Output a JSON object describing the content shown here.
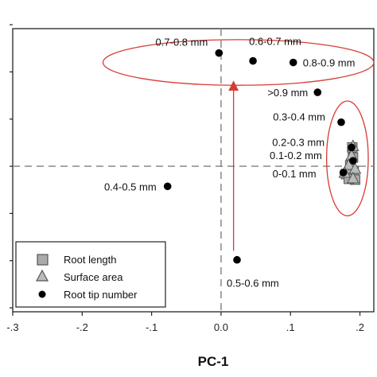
{
  "chart_data": {
    "type": "scatter",
    "xlabel": "PC-1",
    "ylabel": "",
    "xlim": [
      -0.3,
      0.22
    ],
    "ylim": [
      -0.37,
      0.35
    ],
    "x_ticks": [
      -0.3,
      -0.2,
      -0.1,
      0.0,
      0.1,
      0.2
    ],
    "x_tick_labels": [
      "-.3",
      "-.2",
      "-.1",
      "0.0",
      ".1",
      ".2"
    ],
    "y_ticks": [
      -0.36,
      -0.24,
      -0.12,
      0.0,
      0.12,
      0.24,
      0.36
    ],
    "y_tick_labels": [
      "",
      "",
      "",
      "",
      "",
      "",
      ""
    ],
    "reference_lines": {
      "x": 0.0,
      "y": 0.0,
      "style": "dashed"
    },
    "grid": false,
    "legend_position": "bottom-left",
    "series": [
      {
        "name": "Root tip number",
        "marker": "circle",
        "color": "#000000",
        "points": [
          {
            "label": "0.7-0.8 mm",
            "x": -0.003,
            "y": 0.288
          },
          {
            "label": "0.6-0.7 mm",
            "x": 0.046,
            "y": 0.268
          },
          {
            "label": "0.8-0.9 mm",
            "x": 0.104,
            "y": 0.264
          },
          {
            "label": ">0.9 mm",
            "x": 0.139,
            "y": 0.188
          },
          {
            "label": "0.3-0.4 mm",
            "x": 0.173,
            "y": 0.112
          },
          {
            "label": "0.2-0.3 mm",
            "x": 0.188,
            "y": 0.048
          },
          {
            "label": "0.1-0.2 mm",
            "x": 0.19,
            "y": 0.014
          },
          {
            "label": "0-0.1 mm",
            "x": 0.176,
            "y": -0.016
          },
          {
            "label": "0.4-0.5 mm",
            "x": -0.077,
            "y": -0.051
          },
          {
            "label": "0.5-0.6 mm",
            "x": 0.023,
            "y": -0.238
          }
        ]
      },
      {
        "name": "Root length",
        "marker": "square",
        "color": "#aaaaaa",
        "points": [
          {
            "x": 0.189,
            "y": 0.048
          },
          {
            "x": 0.19,
            "y": 0.022
          },
          {
            "x": 0.186,
            "y": 0.002
          },
          {
            "x": 0.191,
            "y": -0.012
          },
          {
            "x": 0.18,
            "y": -0.02
          },
          {
            "x": 0.193,
            "y": -0.034
          },
          {
            "x": 0.184,
            "y": -0.032
          }
        ]
      },
      {
        "name": "Surface area",
        "marker": "triangle",
        "color": "#bbbbbb",
        "points": [
          {
            "x": 0.19,
            "y": 0.052
          },
          {
            "x": 0.188,
            "y": 0.028
          },
          {
            "x": 0.184,
            "y": 0.004
          },
          {
            "x": 0.193,
            "y": -0.006
          },
          {
            "x": 0.178,
            "y": -0.016
          },
          {
            "x": 0.19,
            "y": -0.03
          }
        ]
      }
    ],
    "annotations": {
      "ellipses": [
        {
          "cx": 0.025,
          "cy": 0.264,
          "rx": 0.195,
          "ry": 0.058,
          "color": "#d93a35"
        },
        {
          "cx": 0.182,
          "cy": 0.02,
          "rx": 0.03,
          "ry": 0.146,
          "color": "#d93a35"
        }
      ],
      "arrow": {
        "x": 0.018,
        "y_from": -0.215,
        "y_to": 0.205,
        "color": "#d93a35"
      }
    }
  }
}
